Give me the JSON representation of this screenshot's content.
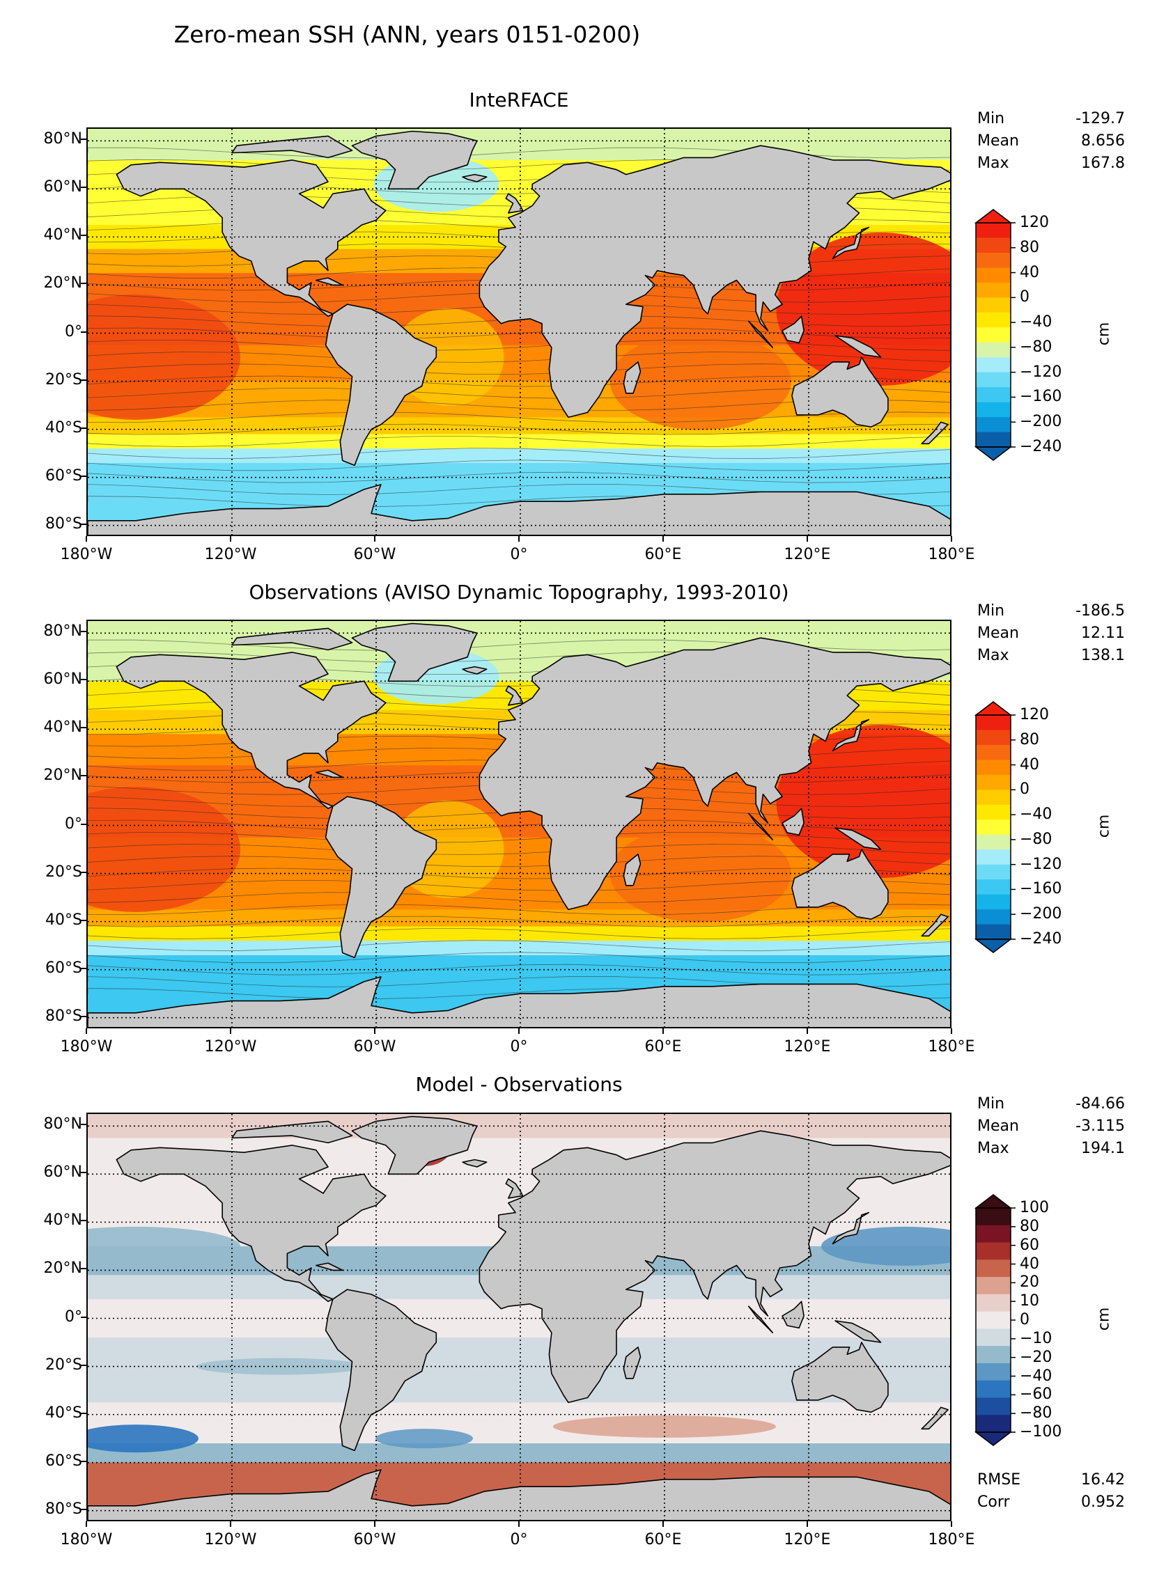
{
  "suptitle": "Zero-mean SSH (ANN, years 0151-0200)",
  "panels": [
    {
      "title": "InteRFACE",
      "stats": [
        [
          "Min",
          "-129.7"
        ],
        [
          "Mean",
          "8.656"
        ],
        [
          "Max",
          "167.8"
        ]
      ],
      "cbar": {
        "labels": [
          "120",
          "80",
          "40",
          "0",
          "−40",
          "−80",
          "−120",
          "−160",
          "−200",
          "−240"
        ],
        "unit": "cm",
        "palette": "ssh"
      }
    },
    {
      "title": "Observations (AVISO Dynamic Topography, 1993-2010)",
      "stats": [
        [
          "Min",
          "-186.5"
        ],
        [
          "Mean",
          "12.11"
        ],
        [
          "Max",
          "138.1"
        ]
      ],
      "cbar": {
        "labels": [
          "120",
          "80",
          "40",
          "0",
          "−40",
          "−80",
          "−120",
          "−160",
          "−200",
          "−240"
        ],
        "unit": "cm",
        "palette": "ssh"
      }
    },
    {
      "title": "Model - Observations",
      "stats": [
        [
          "Min",
          "-84.66"
        ],
        [
          "Mean",
          "-3.115"
        ],
        [
          "Max",
          "194.1"
        ]
      ],
      "cbar": {
        "labels": [
          "100",
          "80",
          "60",
          "40",
          "20",
          "10",
          "0",
          "−10",
          "−20",
          "−40",
          "−60",
          "−80",
          "−100"
        ],
        "unit": "cm",
        "palette": "diff"
      },
      "extra_stats": [
        [
          "RMSE",
          "16.42"
        ],
        [
          "Corr",
          "0.952"
        ]
      ]
    }
  ],
  "lat_labels": [
    "80°N",
    "60°N",
    "40°N",
    "20°N",
    "0°",
    "20°S",
    "40°S",
    "60°S",
    "80°S"
  ],
  "lon_labels": [
    "180°W",
    "120°W",
    "60°W",
    "0°",
    "60°E",
    "120°E",
    "180°E"
  ],
  "colors": {
    "land": "#c8c8c8",
    "ssh": [
      "#0a5fa8",
      "#0a8fd4",
      "#14b4ea",
      "#3cc8f0",
      "#6cdcf6",
      "#a4ecfa",
      "#d8f4a8",
      "#ffff33",
      "#ffe800",
      "#ffcc00",
      "#ffa800",
      "#ff8a00",
      "#f86a10",
      "#f04810",
      "#f02010"
    ],
    "diff": [
      "#1a2a7a",
      "#1c4fa0",
      "#2b76bf",
      "#5d98c4",
      "#95bacc",
      "#d1dbe2",
      "#f1eaea",
      "#e8cfc9",
      "#dca28f",
      "#c9644c",
      "#a8302a",
      "#7a1424",
      "#3a0c14"
    ]
  },
  "chart_data": [
    {
      "type": "heatmap",
      "title": "InteRFACE",
      "xlabel": "",
      "ylabel": "",
      "xlim": [
        -180,
        180
      ],
      "ylim": [
        -85,
        85
      ],
      "z_range": [
        -240,
        120
      ],
      "zonal_profile": {
        "lat": [
          80,
          60,
          40,
          20,
          0,
          -20,
          -40,
          -50,
          -60,
          -80
        ],
        "ssh": [
          -40,
          -60,
          0,
          80,
          60,
          40,
          10,
          -60,
          -150,
          -150
        ]
      },
      "stats": {
        "Min": -129.7,
        "Mean": 8.656,
        "Max": 167.8
      },
      "units": "cm"
    },
    {
      "type": "heatmap",
      "title": "Observations (AVISO Dynamic Topography, 1993-2010)",
      "xlabel": "",
      "ylabel": "",
      "xlim": [
        -180,
        180
      ],
      "ylim": [
        -85,
        85
      ],
      "z_range": [
        -240,
        120
      ],
      "zonal_profile": {
        "lat": [
          80,
          60,
          40,
          20,
          0,
          -20,
          -40,
          -50,
          -60,
          -80
        ],
        "ssh": [
          -50,
          -80,
          20,
          90,
          70,
          60,
          20,
          -60,
          -170,
          -170
        ]
      },
      "stats": {
        "Min": -186.5,
        "Mean": 12.11,
        "Max": 138.1
      },
      "units": "cm"
    },
    {
      "type": "heatmap",
      "title": "Model - Observations",
      "xlabel": "",
      "ylabel": "",
      "xlim": [
        -180,
        180
      ],
      "ylim": [
        -85,
        85
      ],
      "z_range": [
        -100,
        100
      ],
      "zonal_profile": {
        "lat": [
          80,
          60,
          40,
          20,
          0,
          -20,
          -40,
          -50,
          -60,
          -80
        ],
        "diff": [
          30,
          10,
          -25,
          -5,
          0,
          -15,
          0,
          -35,
          30,
          40
        ]
      },
      "stats": {
        "Min": -84.66,
        "Mean": -3.115,
        "Max": 194.1,
        "RMSE": 16.42,
        "Corr": 0.952
      },
      "units": "cm"
    }
  ]
}
